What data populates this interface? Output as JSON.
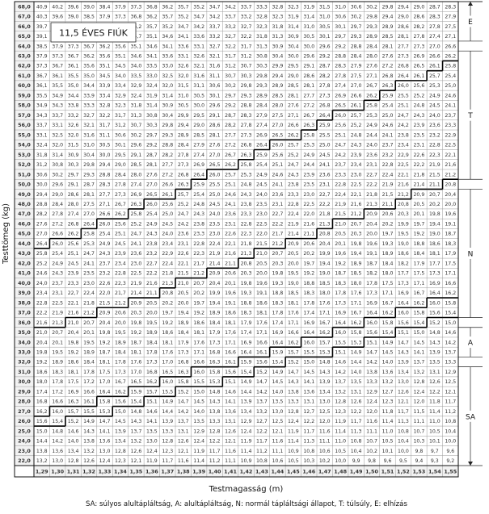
{
  "title": "11,5 ÉVES FIÚK",
  "xlabel": "Testmagasság (m)",
  "ylabel": "Testtömeg (kg)",
  "legend": "SA: súlyos alultápláltság, A: alultápláltság, N: normál tápláltsági állapot, T: túlsúly, E: elhízás",
  "colors": {
    "grid": "#9a9a9a",
    "text": "#333333",
    "border": "#111111",
    "boundary": "#000000",
    "header_fill": "#f2f2f2"
  },
  "chart_data": {
    "type": "table",
    "metric": "BMI",
    "heights_m": [
      1.29,
      1.3,
      1.31,
      1.32,
      1.33,
      1.34,
      1.35,
      1.36,
      1.37,
      1.38,
      1.39,
      1.4,
      1.41,
      1.42,
      1.43,
      1.44,
      1.45,
      1.46,
      1.47,
      1.48,
      1.49,
      1.5,
      1.51,
      1.52,
      1.53,
      1.54,
      1.55
    ],
    "height_labels": [
      "1,29",
      "1,30",
      "1,31",
      "1,32",
      "1,33",
      "1,34",
      "1,35",
      "1,36",
      "1,37",
      "1,38",
      "1,39",
      "1,40",
      "1,41",
      "1,42",
      "1,43",
      "1,44",
      "1,45",
      "1,46",
      "1,47",
      "1,48",
      "1,49",
      "1,50",
      "1,51",
      "1,52",
      "1,53",
      "1,54",
      "1,55"
    ],
    "weight_range_kg": [
      22,
      68
    ],
    "weight_step_kg": 1,
    "value_rule": "BMI = weight / height^2, one decimal",
    "categories": [
      {
        "code": "SA",
        "name": "súlyos alultápláltság",
        "bmi_max": 15.3
      },
      {
        "code": "A",
        "name": "alultápláltság",
        "bmi_min": 15.3,
        "bmi_max": 16.1
      },
      {
        "code": "N",
        "name": "normál tápláltsági állapot",
        "bmi_min": 16.1,
        "bmi_max": 21.1
      },
      {
        "code": "T",
        "name": "túlsúly",
        "bmi_min": 21.1,
        "bmi_max": 26.1
      },
      {
        "code": "E",
        "name": "elhízás",
        "bmi_min": 26.1
      }
    ],
    "side_labels": [
      {
        "code": "E",
        "weight_kg_top": 68,
        "weight_kg_bottom": 65
      },
      {
        "code": "T",
        "weight_kg_top": 63,
        "weight_kg_bottom": 51
      },
      {
        "code": "N",
        "weight_kg_top": 49,
        "weight_kg_bottom": 37
      },
      {
        "code": "A",
        "weight_kg_top": 35,
        "weight_kg_bottom": 33
      },
      {
        "code": "SA",
        "weight_kg_top": 31,
        "weight_kg_bottom": 22
      }
    ]
  }
}
